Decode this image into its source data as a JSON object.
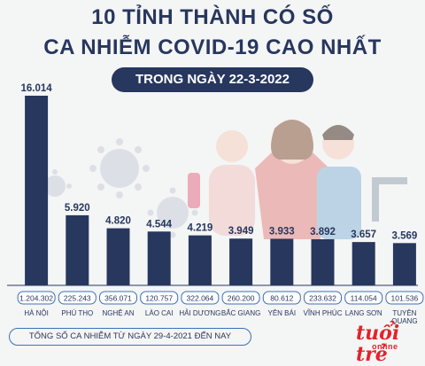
{
  "header": {
    "title_line1": "10 TỈNH THÀNH CÓ SỐ",
    "title_line2": "CA NHIỄM COVID-19 CAO NHẤT",
    "subtitle": "TRONG NGÀY 22-3-2022"
  },
  "footer": {
    "note": "TỔNG SỐ CA NHIỄM TỪ NGÀY 29-4-2021 ĐẾN NAY"
  },
  "logo": {
    "main": "tuổi trẻ",
    "sub": "online"
  },
  "colors": {
    "bar": "#27375e",
    "pill": "#27375e",
    "total_box_border": "#3d70b6",
    "title": "#27375e",
    "logo": "#e3232b"
  },
  "chart_data": {
    "type": "bar",
    "title": "10 TỈNH THÀNH CÓ SỐ CA NHIỄM COVID-19 CAO NHẤT",
    "subtitle": "TRONG NGÀY 22-3-2022",
    "categories": [
      "HÀ NỘI",
      "PHÚ THỌ",
      "NGHỆ AN",
      "LÀO CAI",
      "HẢI DƯƠNG",
      "BẮC GIANG",
      "YÊN BÁI",
      "VĨNH PHÚC",
      "LẠNG SƠN",
      "TUYÊN QUANG"
    ],
    "values": [
      16014,
      5920,
      4820,
      4544,
      4219,
      3949,
      3933,
      3892,
      3657,
      3569
    ],
    "value_labels": [
      "16.014",
      "5.920",
      "4.820",
      "4.544",
      "4.219",
      "3.949",
      "3.933",
      "3.892",
      "3.657",
      "3.569"
    ],
    "total_labels": [
      "1.204.302",
      "225.243",
      "356.071",
      "120.757",
      "322.064",
      "260.200",
      "80.612",
      "233.632",
      "114.054",
      "101.536"
    ],
    "total_caption": "TỔNG SỐ CA NHIỄM TỪ NGÀY 29-4-2021 ĐẾN NAY",
    "ylim": [
      0,
      16014
    ],
    "grid": false,
    "legend": "none"
  }
}
